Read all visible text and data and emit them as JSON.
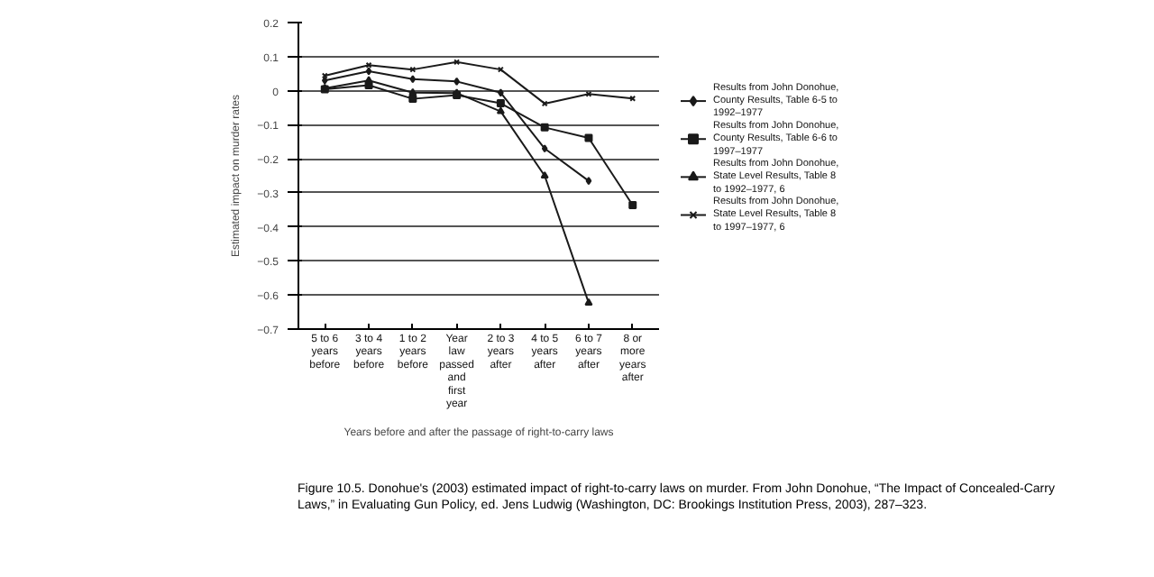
{
  "chart_data": {
    "type": "line",
    "ylabel": "Estimated impact on murder rates",
    "xlabel": "Years before and after the passage of right-to-carry laws",
    "categories": [
      "5 to 6 years before",
      "3 to 4 years before",
      "1 to 2 years before",
      "Year law passed and first year",
      "2 to 3 years after",
      "4 to 5 years after",
      "6 to 7 years after",
      "8 or more years after"
    ],
    "series": [
      {
        "name": "Results from John Donohue, County Results, Table 6-5 to 1992–1977",
        "color": "#1a1a1a",
        "marker": "diamond",
        "values": [
          0.03,
          0.057,
          0.034,
          0.027,
          -0.006,
          -0.17,
          -0.265,
          null
        ]
      },
      {
        "name": "Results from John Donohue, County Results, Table 6-6 to 1997–1977",
        "color": "#1a1a1a",
        "marker": "square",
        "values": [
          0.004,
          0.016,
          -0.024,
          -0.013,
          -0.037,
          -0.108,
          -0.139,
          -0.336
        ]
      },
      {
        "name": "Results from John Donohue, State Level Results, Table 8 to 1992–1977, 6",
        "color": "#1a1a1a",
        "marker": "triangle",
        "values": [
          0.007,
          0.03,
          -0.006,
          -0.007,
          -0.061,
          -0.25,
          -0.623,
          null
        ]
      },
      {
        "name": "Results from John Donohue, State Level Results, Table 8 to 1997–1977, 6",
        "color": "#1a1a1a",
        "marker": "cross",
        "values": [
          0.044,
          0.075,
          0.062,
          0.084,
          0.062,
          -0.038,
          -0.01,
          -0.023
        ]
      }
    ],
    "ylim": [
      -0.7,
      0.2
    ],
    "yticks": [
      -0.7,
      -0.6,
      -0.5,
      -0.4,
      -0.3,
      -0.2,
      -0.1,
      0,
      0.1,
      0.2
    ],
    "grid": "y",
    "legend": "right",
    "annotations": [
      "Figure 10.5. Donohue's (2003) estimated impact of right-to-carry laws on murder. From John Donohue, “The Impact of Concealed-Carry Laws,” in Evaluating Gun Policy, ed. Jens Ludwig (Washington, DC: Brookings Institution Press, 2003), 287–323."
    ]
  }
}
